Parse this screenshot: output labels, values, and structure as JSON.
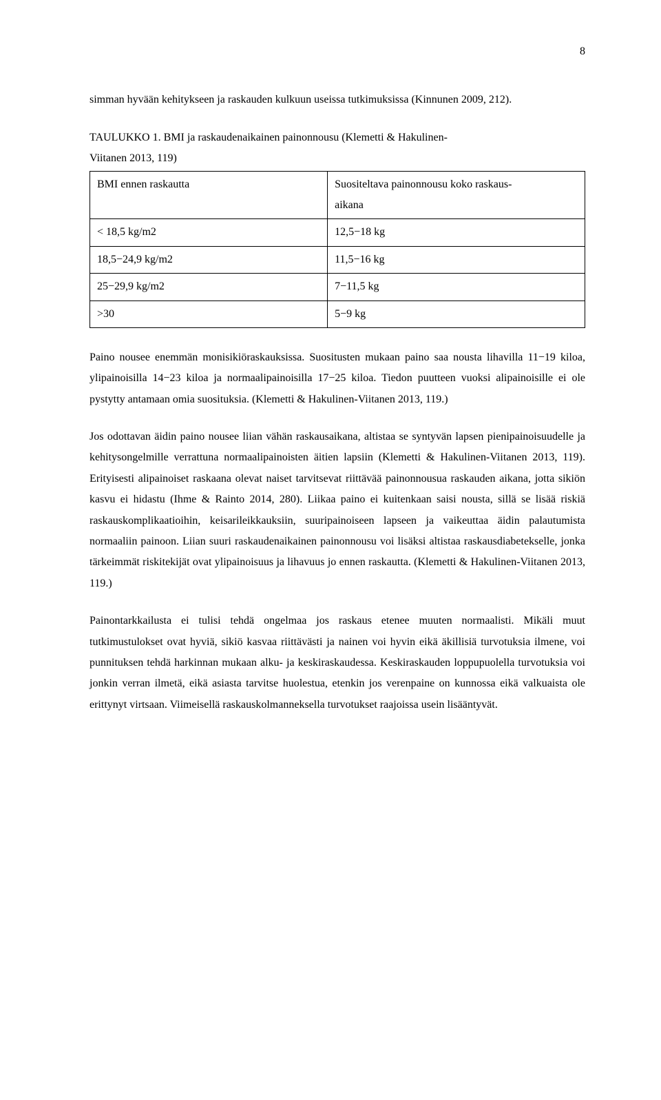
{
  "page_number": "8",
  "intro_para": "simman hyvään kehitykseen ja raskauden kulkuun useissa tutkimuksissa (Kinnunen 2009, 212).",
  "table_caption_line1": "TAULUKKO 1. BMI ja raskaudenaikainen painonnousu (Klemetti & Hakulinen-",
  "table_caption_line2": "Viitanen 2013, 119)",
  "table": {
    "rows": [
      {
        "left": "BMI ennen raskautta",
        "right_line1": "Suositeltava painonnousu koko raskaus-",
        "right_line2": "aikana"
      },
      {
        "left": "< 18,5 kg/m2",
        "right": "12,5−18 kg"
      },
      {
        "left": "18,5−24,9 kg/m2",
        "right": "11,5−16 kg"
      },
      {
        "left": "25−29,9 kg/m2",
        "right": "7−11,5 kg"
      },
      {
        "left": ">30",
        "right": "5−9 kg"
      }
    ]
  },
  "para2": "Paino nousee enemmän monisikiöraskauksissa. Suositusten mukaan paino saa nousta lihavilla 11−19 kiloa, ylipainoisilla 14−23 kiloa ja normaalipainoisilla 17−25 kiloa. Tiedon puutteen vuoksi alipainoisille ei ole pystytty antamaan omia suosituksia. (Klemetti & Hakulinen-Viitanen 2013, 119.)",
  "para3": "Jos odottavan äidin paino nousee liian vähän raskausaikana, altistaa se syntyvän lapsen pienipainoisuudelle ja kehitysongelmille verrattuna normaalipainoisten äitien lapsiin (Klemetti & Hakulinen-Viitanen 2013, 119). Erityisesti alipainoiset raskaana olevat naiset tarvitsevat riittävää painonnousua raskauden aikana, jotta sikiön kasvu ei hidastu (Ihme & Rainto 2014, 280). Liikaa paino ei kuitenkaan saisi nousta, sillä se lisää riskiä raskauskomplikaatioihin, keisarileikkauksiin, suuripainoiseen lapseen ja vaikeuttaa äidin palautumista normaaliin painoon. Liian suuri raskaudenaikainen painonnousu voi lisäksi altistaa raskausdiabetekselle, jonka tärkeimmät riskitekijät ovat ylipainoisuus ja lihavuus jo ennen raskautta. (Klemetti & Hakulinen-Viitanen 2013, 119.)",
  "para4": "Painontarkkailusta ei tulisi tehdä ongelmaa jos raskaus etenee muuten normaalisti. Mikäli muut tutkimustulokset ovat hyviä, sikiö kasvaa riittävästi ja nainen voi hyvin eikä äkillisiä turvotuksia ilmene, voi punnituksen tehdä harkinnan mukaan alku- ja keskiraskaudessa. Keskiraskauden loppupuolella turvotuksia voi jonkin verran ilmetä, eikä asiasta tarvitse huolestua, etenkin jos verenpaine on kunnossa eikä valkuaista ole erittynyt virtsaan. Viimeisellä raskauskolmanneksella turvotukset raajoissa usein lisääntyvät."
}
